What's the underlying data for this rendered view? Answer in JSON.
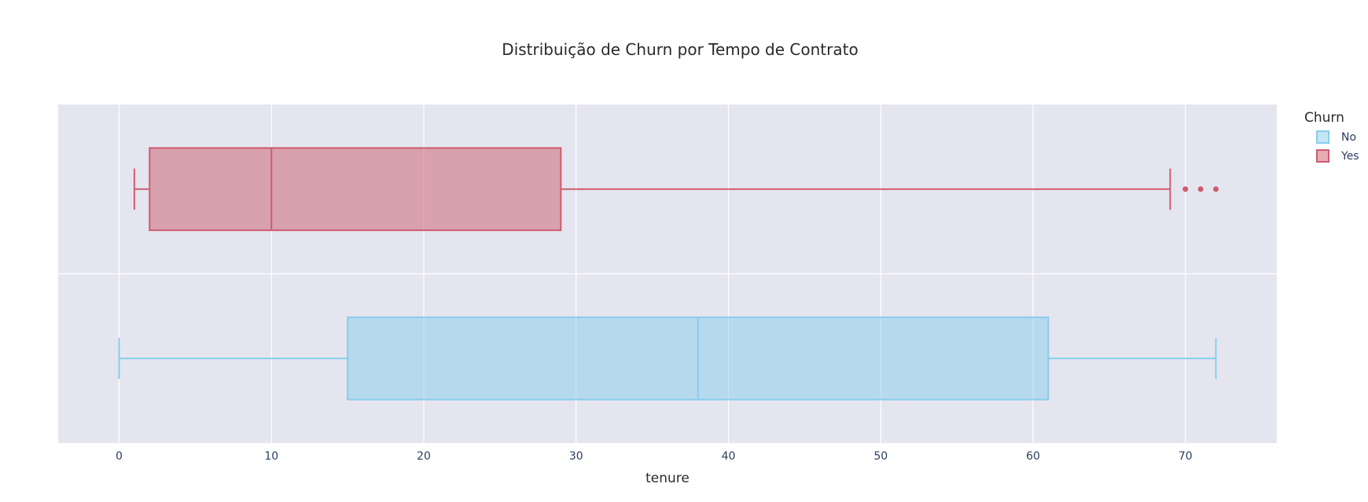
{
  "chart_data": {
    "type": "box",
    "title": "Distribuição de Churn por Tempo de Contrato",
    "xlabel": "tenure",
    "ylabel": "",
    "orientation": "horizontal",
    "xlim": [
      -4,
      76
    ],
    "xticks": [
      0,
      10,
      20,
      30,
      40,
      50,
      60,
      70
    ],
    "grid": true,
    "legend": {
      "title": "Churn",
      "placement": "top-right"
    },
    "series": [
      {
        "name": "No",
        "color": "#87ceeb",
        "min": 0,
        "q1": 15,
        "median": 38,
        "q3": 61,
        "max": 72,
        "outliers": []
      },
      {
        "name": "Yes",
        "color": "#cd5c6c",
        "min": 1,
        "q1": 2,
        "median": 10,
        "q3": 29,
        "max": 69,
        "outliers": [
          70,
          71,
          72
        ]
      }
    ]
  }
}
